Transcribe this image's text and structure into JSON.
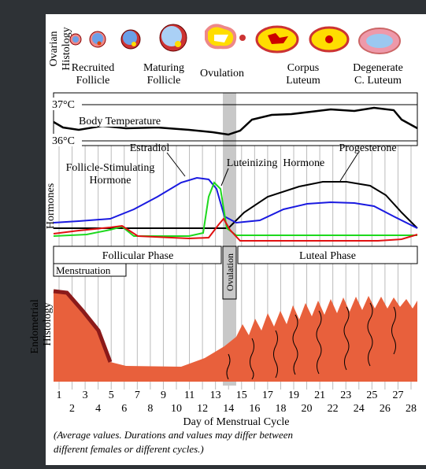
{
  "ovarian": {
    "label": [
      "Ovarian",
      "Histology"
    ],
    "stages": [
      [
        "Recruited",
        "Follicle"
      ],
      [
        "Maturing",
        "Follicle"
      ],
      [
        "Ovulation"
      ],
      [
        "Corpus",
        "Luteum"
      ],
      [
        "Degenerate",
        "C. Luteum"
      ]
    ]
  },
  "temperature": {
    "high": "37°C",
    "low": "36°C",
    "label": "Body Temperature"
  },
  "hormones": {
    "label": "Hormones",
    "estradiol": "Estradiol",
    "fsh": [
      "Follicle-Stimulating",
      "Hormone"
    ],
    "lh": "Luteinizing  Hormone",
    "progesterone": "Progesterone"
  },
  "phases": {
    "follicular": "Follicular Phase",
    "luteal": "Luteal Phase",
    "ovulation": "Ovulation",
    "menstruation": "Menstruation"
  },
  "endometrium": {
    "label": [
      "Endometrial",
      "Histology"
    ]
  },
  "days": [
    1,
    2,
    3,
    4,
    5,
    6,
    7,
    8,
    9,
    10,
    11,
    12,
    13,
    14,
    15,
    16,
    17,
    18,
    19,
    20,
    21,
    22,
    23,
    24,
    25,
    26,
    27,
    28
  ],
  "x_axis": "Day of Menstrual Cycle",
  "note": [
    "(Average values. Durations and values may differ between",
    "different females or different cycles.)"
  ]
}
